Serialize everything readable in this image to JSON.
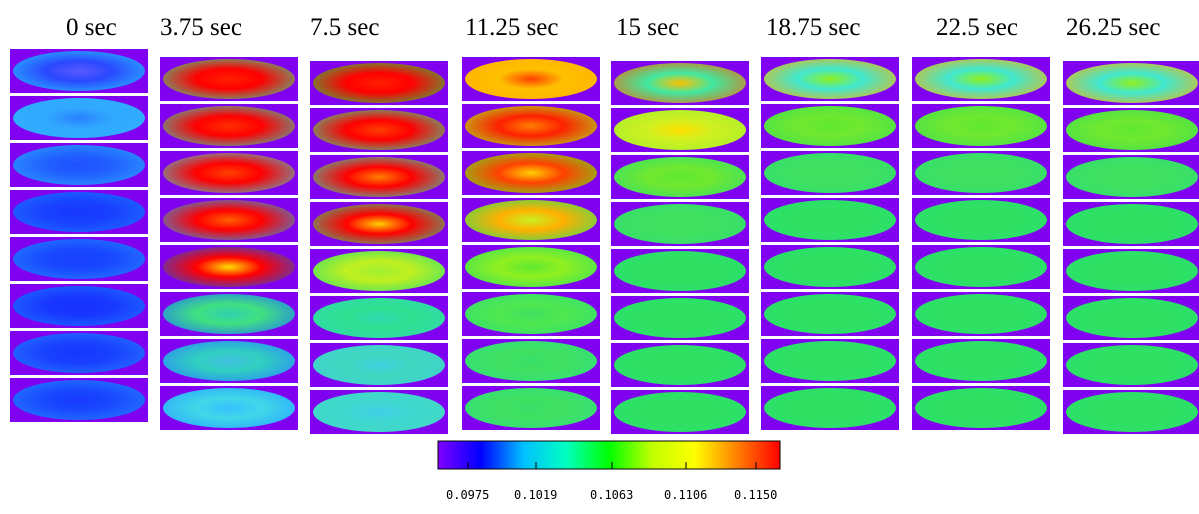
{
  "columns": [
    {
      "time": "0 sec",
      "rows": [
        [
          "#2a48ff",
          "#5a5aff",
          "#28c8ff"
        ],
        [
          "#30a8ff",
          "#2a80ff",
          "#30b0ff"
        ],
        [
          "#2060ff",
          "#2050ff",
          "#30a0ff"
        ],
        [
          "#1840ff",
          "#1838ff",
          "#2070ff"
        ],
        [
          "#1848ff",
          "#1840ff",
          "#2880ff"
        ],
        [
          "#1838ff",
          "#1830ff",
          "#2070ff"
        ],
        [
          "#1840ff",
          "#1838ff",
          "#2a78ff"
        ],
        [
          "#1848ff",
          "#1838ff",
          "#2880ff"
        ]
      ]
    },
    {
      "time": "3.75 sec",
      "rows": [
        [
          "#ff0000",
          "#ff2000",
          "#30e0a0"
        ],
        [
          "#ff0000",
          "#ff3000",
          "#30d0c0"
        ],
        [
          "#ff0000",
          "#ff4000",
          "#40c8e0"
        ],
        [
          "#ff0000",
          "#ff6000",
          "#20a0ff"
        ],
        [
          "#ff0000",
          "#ffe000",
          "#1850ff"
        ],
        [
          "#40e080",
          "#30d0b0",
          "#2070ff"
        ],
        [
          "#30d0c0",
          "#40c0e0",
          "#2a80ff"
        ],
        [
          "#40d8e8",
          "#38c0ff",
          "#28a0ff"
        ]
      ]
    },
    {
      "time": "7.5 sec",
      "rows": [
        [
          "#ff0000",
          "#ff2000",
          "#20d050"
        ],
        [
          "#ff0000",
          "#ff4000",
          "#30e0a0"
        ],
        [
          "#ff0000",
          "#ff8000",
          "#30d8c0"
        ],
        [
          "#ff0000",
          "#ffd000",
          "#30d090"
        ],
        [
          "#c0f020",
          "#a0f030",
          "#30e070"
        ],
        [
          "#30e090",
          "#30d8b0",
          "#30d8b0"
        ],
        [
          "#40d8c0",
          "#40d0e0",
          "#40d0d0"
        ],
        [
          "#40d8d0",
          "#40d0e8",
          "#40d8c0"
        ]
      ]
    },
    {
      "time": "11.25 sec",
      "rows": [
        [
          "#ffc000",
          "#ff4000",
          "#ffb000"
        ],
        [
          "#ff2000",
          "#ff8000",
          "#a0f020"
        ],
        [
          "#ff4000",
          "#ffd000",
          "#60e820"
        ],
        [
          "#ffb000",
          "#c8f020",
          "#30e060"
        ],
        [
          "#90f020",
          "#60e830",
          "#30e060"
        ],
        [
          "#50e850",
          "#40e060",
          "#30e070"
        ],
        [
          "#40e060",
          "#38e068",
          "#30e080"
        ],
        [
          "#40e060",
          "#38e068",
          "#30e080"
        ]
      ]
    },
    {
      "time": "15 sec",
      "rows": [
        [
          "#40e8a0",
          "#ffc000",
          "#ff6000"
        ],
        [
          "#d0f020",
          "#ffe000",
          "#a0f030"
        ],
        [
          "#70e830",
          "#60e830",
          "#30e070"
        ],
        [
          "#40e060",
          "#40e060",
          "#30e070"
        ],
        [
          "#30e060",
          "#30e060",
          "#28e070"
        ],
        [
          "#30e060",
          "#30e060",
          "#28e070"
        ],
        [
          "#30e060",
          "#30e060",
          "#28e070"
        ],
        [
          "#30e060",
          "#30e060",
          "#28e070"
        ]
      ]
    },
    {
      "time": "18.75 sec",
      "rows": [
        [
          "#40e8d0",
          "#90f020",
          "#ffb000"
        ],
        [
          "#70e830",
          "#60e830",
          "#40e050"
        ],
        [
          "#40e060",
          "#40e060",
          "#30e070"
        ],
        [
          "#30e060",
          "#30e060",
          "#28e070"
        ],
        [
          "#30e060",
          "#30e060",
          "#28e070"
        ],
        [
          "#30e060",
          "#30e060",
          "#28e070"
        ],
        [
          "#30e060",
          "#30e060",
          "#28e070"
        ],
        [
          "#30e060",
          "#30e060",
          "#28e070"
        ]
      ]
    },
    {
      "time": "22.5 sec",
      "rows": [
        [
          "#40e8d0",
          "#90f020",
          "#ffb000"
        ],
        [
          "#70e830",
          "#60e830",
          "#40e050"
        ],
        [
          "#40e060",
          "#40e060",
          "#30e070"
        ],
        [
          "#30e060",
          "#30e060",
          "#28e070"
        ],
        [
          "#30e060",
          "#30e060",
          "#28e070"
        ],
        [
          "#30e060",
          "#30e060",
          "#28e070"
        ],
        [
          "#30e060",
          "#30e060",
          "#28e070"
        ],
        [
          "#30e060",
          "#30e060",
          "#28e070"
        ]
      ]
    },
    {
      "time": "26.25 sec",
      "rows": [
        [
          "#40e8d0",
          "#90f020",
          "#ffb000"
        ],
        [
          "#70e830",
          "#60e830",
          "#40e050"
        ],
        [
          "#40e060",
          "#40e060",
          "#30e070"
        ],
        [
          "#30e060",
          "#30e060",
          "#28e070"
        ],
        [
          "#30e060",
          "#30e060",
          "#28e070"
        ],
        [
          "#30e060",
          "#30e060",
          "#28e070"
        ],
        [
          "#30e060",
          "#30e060",
          "#28e070"
        ],
        [
          "#30e060",
          "#30e060",
          "#28e070"
        ]
      ]
    }
  ],
  "colorbar": {
    "stops": [
      "#8000ff",
      "#0000ff",
      "#00c0ff",
      "#00ffc0",
      "#00ff00",
      "#c0ff00",
      "#ffff00",
      "#ff8000",
      "#ff0000"
    ],
    "tick_labels": [
      "0.0975",
      "0.1019",
      "0.1063",
      "0.1106",
      "0.1150"
    ]
  },
  "colors": {
    "background_purple": "#8000f0"
  }
}
